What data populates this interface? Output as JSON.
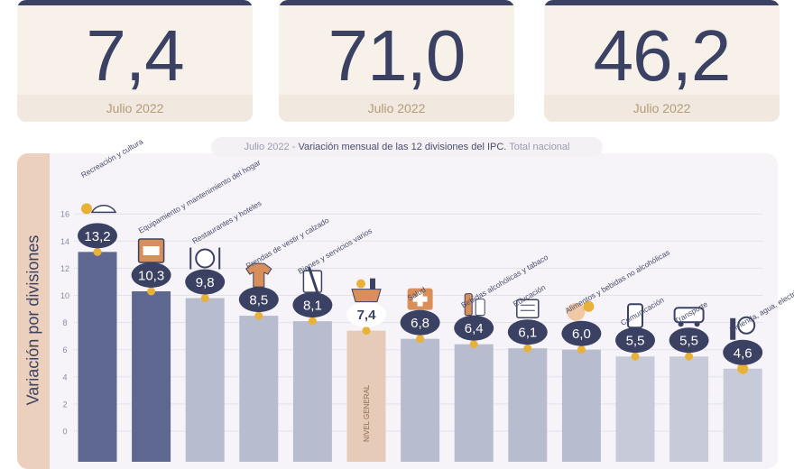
{
  "cards": [
    {
      "value": "7,4",
      "date": "Julio 2022"
    },
    {
      "value": "71,0",
      "date": "Julio 2022"
    },
    {
      "value": "46,2",
      "date": "Julio 2022"
    }
  ],
  "subtitle": {
    "date": "Julio 2022",
    "sep": " - ",
    "text": "Variación mensual de las 12 divisiones del IPC.",
    "scope": " Total nacional"
  },
  "colors": {
    "dark_bar": "#5e6790",
    "light_bar": "#b8bccf",
    "general_bar": "#e6cbb8",
    "badge": "#3b4163",
    "dot": "#e8b23a",
    "card_text": "#3b4163"
  },
  "chart_data": {
    "type": "bar",
    "title": "Variación mensual de las 12 divisiones del IPC. Total nacional",
    "ylabel": "Variación por divisiones",
    "ylim": [
      0,
      16
    ],
    "yticks": [
      0,
      2,
      4,
      6,
      8,
      10,
      12,
      14,
      16
    ],
    "grid": true,
    "categories": [
      "Recreación y cultura",
      "Equipamiento y mantenimiento del hogar",
      "Restaurantes y hoteles",
      "Prendas de vestir y calzado",
      "Bienes y servicios varios",
      "NIVEL GENERAL",
      "Salud",
      "Bebidas alcohólicas y tabaco",
      "Educación",
      "Alimentos y bebidas no alcohólicas",
      "Comunicación",
      "Transporte",
      "Vivienda, agua, electricidad, gas y otros combustibles"
    ],
    "values": [
      13.2,
      10.3,
      9.8,
      8.5,
      8.1,
      7.4,
      6.8,
      6.4,
      6.1,
      6.0,
      5.5,
      5.5,
      4.6
    ],
    "value_labels": [
      "13,2",
      "10,3",
      "9,8",
      "8,5",
      "8,1",
      "7,4",
      "6,8",
      "6,4",
      "6,1",
      "6,0",
      "5,5",
      "5,5",
      "4,6"
    ],
    "icons": [
      "umbrella-sun-icon",
      "stove-icon",
      "cutlery-icon",
      "clothing-icon",
      "tools-icon",
      "basket-icon",
      "medical-cross-icon",
      "bottles-icon",
      "books-icon",
      "food-icon",
      "phone-icon",
      "bus-icon",
      "bulb-icon"
    ],
    "vertical_label": "NIVEL GENERAL"
  }
}
